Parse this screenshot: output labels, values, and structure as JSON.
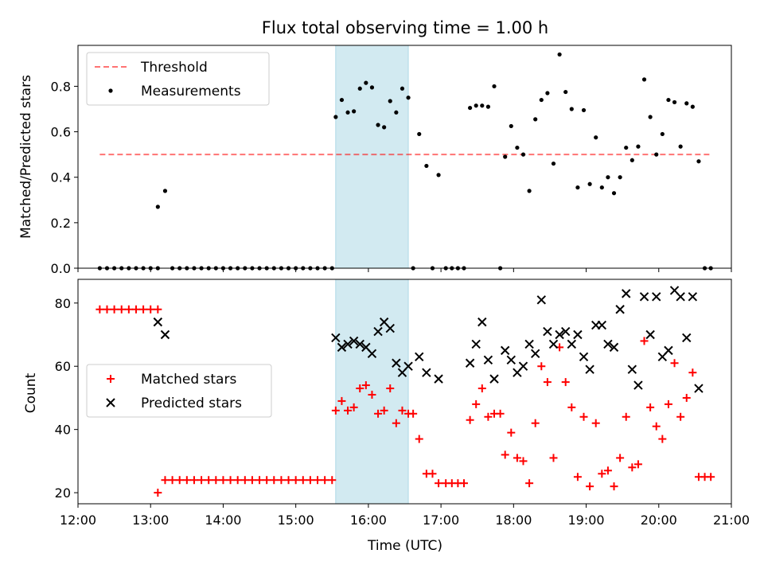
{
  "chart_data": [
    {
      "type": "scatter",
      "title": "Flux total observing time = 1.00 h",
      "xlabel": "",
      "ylabel": "Matched/Predicted stars",
      "xlim": [
        "12:00",
        "21:00"
      ],
      "ylim": [
        0.0,
        0.98
      ],
      "yticks": [
        "0.0",
        "0.2",
        "0.4",
        "0.6",
        "0.8"
      ],
      "highlight_span": {
        "from": "15:33",
        "to": "16:33",
        "color": "#add8e6"
      },
      "legend_position": "upper left",
      "threshold": {
        "name": "Threshold",
        "value": 0.5,
        "from": "12:18",
        "to": "20:42",
        "color": "#ff0000"
      },
      "series": [
        {
          "name": "Measurements",
          "marker": "dot",
          "color": "#000000",
          "points": [
            [
              "12:18",
              0
            ],
            [
              "12:24",
              0
            ],
            [
              "12:30",
              0
            ],
            [
              "12:36",
              0
            ],
            [
              "12:42",
              0
            ],
            [
              "12:48",
              0
            ],
            [
              "12:54",
              0
            ],
            [
              "13:00",
              0
            ],
            [
              "13:06",
              0
            ],
            [
              "13:06",
              0.27
            ],
            [
              "13:12",
              0.34
            ],
            [
              "13:18",
              0
            ],
            [
              "13:24",
              0
            ],
            [
              "13:30",
              0
            ],
            [
              "13:36",
              0
            ],
            [
              "13:42",
              0
            ],
            [
              "13:48",
              0
            ],
            [
              "13:54",
              0
            ],
            [
              "14:00",
              0
            ],
            [
              "14:06",
              0
            ],
            [
              "14:12",
              0
            ],
            [
              "14:18",
              0
            ],
            [
              "14:24",
              0
            ],
            [
              "14:30",
              0
            ],
            [
              "14:36",
              0
            ],
            [
              "14:42",
              0
            ],
            [
              "14:48",
              0
            ],
            [
              "14:54",
              0
            ],
            [
              "15:00",
              0
            ],
            [
              "15:06",
              0
            ],
            [
              "15:12",
              0
            ],
            [
              "15:18",
              0
            ],
            [
              "15:24",
              0
            ],
            [
              "15:30",
              0
            ],
            [
              "15:33",
              0.665
            ],
            [
              "15:38",
              0.74
            ],
            [
              "15:43",
              0.685
            ],
            [
              "15:48",
              0.69
            ],
            [
              "15:53",
              0.79
            ],
            [
              "15:58",
              0.815
            ],
            [
              "16:03",
              0.795
            ],
            [
              "16:08",
              0.63
            ],
            [
              "16:13",
              0.62
            ],
            [
              "16:18",
              0.735
            ],
            [
              "16:23",
              0.685
            ],
            [
              "16:28",
              0.79
            ],
            [
              "16:33",
              0.75
            ],
            [
              "16:37",
              0
            ],
            [
              "16:42",
              0.59
            ],
            [
              "16:48",
              0.45
            ],
            [
              "16:53",
              0
            ],
            [
              "16:58",
              0.41
            ],
            [
              "17:04",
              0
            ],
            [
              "17:09",
              0
            ],
            [
              "17:14",
              0
            ],
            [
              "17:19",
              0
            ],
            [
              "17:24",
              0.705
            ],
            [
              "17:29",
              0.715
            ],
            [
              "17:34",
              0.715
            ],
            [
              "17:39",
              0.71
            ],
            [
              "17:44",
              0.8
            ],
            [
              "17:49",
              0
            ],
            [
              "17:53",
              0.49
            ],
            [
              "17:58",
              0.625
            ],
            [
              "18:03",
              0.53
            ],
            [
              "18:08",
              0.5
            ],
            [
              "18:13",
              0.34
            ],
            [
              "18:18",
              0.655
            ],
            [
              "18:23",
              0.74
            ],
            [
              "18:28",
              0.77
            ],
            [
              "18:33",
              0.46
            ],
            [
              "18:38",
              0.94
            ],
            [
              "18:43",
              0.775
            ],
            [
              "18:48",
              0.7
            ],
            [
              "18:53",
              0.355
            ],
            [
              "18:58",
              0.695
            ],
            [
              "19:03",
              0.37
            ],
            [
              "19:08",
              0.575
            ],
            [
              "19:13",
              0.355
            ],
            [
              "19:18",
              0.4
            ],
            [
              "19:23",
              0.33
            ],
            [
              "19:28",
              0.4
            ],
            [
              "19:33",
              0.53
            ],
            [
              "19:38",
              0.475
            ],
            [
              "19:43",
              0.535
            ],
            [
              "19:48",
              0.83
            ],
            [
              "19:53",
              0.665
            ],
            [
              "19:58",
              0.5
            ],
            [
              "20:03",
              0.59
            ],
            [
              "20:08",
              0.74
            ],
            [
              "20:13",
              0.73
            ],
            [
              "20:18",
              0.535
            ],
            [
              "20:23",
              0.725
            ],
            [
              "20:28",
              0.71
            ],
            [
              "20:33",
              0.47
            ],
            [
              "20:38",
              0
            ],
            [
              "20:43",
              0
            ]
          ]
        }
      ]
    },
    {
      "type": "scatter",
      "title": "",
      "xlabel": "Time (UTC)",
      "ylabel": "Count",
      "xlim": [
        "12:00",
        "21:00"
      ],
      "ylim": [
        16.5,
        87.5
      ],
      "xticks": [
        "12:00",
        "13:00",
        "14:00",
        "15:00",
        "16:00",
        "17:00",
        "18:00",
        "19:00",
        "20:00",
        "21:00"
      ],
      "yticks": [
        "20",
        "40",
        "60",
        "80"
      ],
      "highlight_span": {
        "from": "15:33",
        "to": "16:33",
        "color": "#add8e6"
      },
      "legend_position": "center left",
      "series": [
        {
          "name": "Matched stars",
          "marker": "plus",
          "color": "#ff0000",
          "points": [
            [
              "12:18",
              78
            ],
            [
              "12:24",
              78
            ],
            [
              "12:30",
              78
            ],
            [
              "12:36",
              78
            ],
            [
              "12:42",
              78
            ],
            [
              "12:48",
              78
            ],
            [
              "12:54",
              78
            ],
            [
              "13:00",
              78
            ],
            [
              "13:06",
              78
            ],
            [
              "13:06",
              20
            ],
            [
              "13:12",
              24
            ],
            [
              "13:18",
              24
            ],
            [
              "13:24",
              24
            ],
            [
              "13:30",
              24
            ],
            [
              "13:36",
              24
            ],
            [
              "13:42",
              24
            ],
            [
              "13:48",
              24
            ],
            [
              "13:54",
              24
            ],
            [
              "14:00",
              24
            ],
            [
              "14:06",
              24
            ],
            [
              "14:12",
              24
            ],
            [
              "14:18",
              24
            ],
            [
              "14:24",
              24
            ],
            [
              "14:30",
              24
            ],
            [
              "14:36",
              24
            ],
            [
              "14:42",
              24
            ],
            [
              "14:48",
              24
            ],
            [
              "14:54",
              24
            ],
            [
              "15:00",
              24
            ],
            [
              "15:06",
              24
            ],
            [
              "15:12",
              24
            ],
            [
              "15:18",
              24
            ],
            [
              "15:24",
              24
            ],
            [
              "15:30",
              24
            ],
            [
              "15:33",
              46
            ],
            [
              "15:38",
              49
            ],
            [
              "15:43",
              46
            ],
            [
              "15:48",
              47
            ],
            [
              "15:53",
              53
            ],
            [
              "15:58",
              54
            ],
            [
              "16:03",
              51
            ],
            [
              "16:08",
              45
            ],
            [
              "16:13",
              46
            ],
            [
              "16:18",
              53
            ],
            [
              "16:23",
              42
            ],
            [
              "16:28",
              46
            ],
            [
              "16:33",
              45
            ],
            [
              "16:37",
              45
            ],
            [
              "16:42",
              37
            ],
            [
              "16:48",
              26
            ],
            [
              "16:53",
              26
            ],
            [
              "16:58",
              23
            ],
            [
              "17:04",
              23
            ],
            [
              "17:09",
              23
            ],
            [
              "17:14",
              23
            ],
            [
              "17:19",
              23
            ],
            [
              "17:24",
              43
            ],
            [
              "17:29",
              48
            ],
            [
              "17:34",
              53
            ],
            [
              "17:39",
              44
            ],
            [
              "17:44",
              45
            ],
            [
              "17:49",
              45
            ],
            [
              "17:53",
              32
            ],
            [
              "17:58",
              39
            ],
            [
              "18:03",
              31
            ],
            [
              "18:08",
              30
            ],
            [
              "18:13",
              23
            ],
            [
              "18:18",
              42
            ],
            [
              "18:23",
              60
            ],
            [
              "18:28",
              55
            ],
            [
              "18:33",
              31
            ],
            [
              "18:38",
              66
            ],
            [
              "18:43",
              55
            ],
            [
              "18:48",
              47
            ],
            [
              "18:53",
              25
            ],
            [
              "18:58",
              44
            ],
            [
              "19:03",
              22
            ],
            [
              "19:08",
              42
            ],
            [
              "19:13",
              26
            ],
            [
              "19:18",
              27
            ],
            [
              "19:23",
              22
            ],
            [
              "19:28",
              31
            ],
            [
              "19:33",
              44
            ],
            [
              "19:38",
              28
            ],
            [
              "19:43",
              29
            ],
            [
              "19:48",
              68
            ],
            [
              "19:53",
              47
            ],
            [
              "19:58",
              41
            ],
            [
              "20:03",
              37
            ],
            [
              "20:08",
              48
            ],
            [
              "20:13",
              61
            ],
            [
              "20:18",
              44
            ],
            [
              "20:23",
              50
            ],
            [
              "20:28",
              58
            ],
            [
              "20:33",
              25
            ],
            [
              "20:38",
              25
            ],
            [
              "20:43",
              25
            ]
          ]
        },
        {
          "name": "Predicted stars",
          "marker": "x",
          "color": "#000000",
          "points": [
            [
              "13:06",
              74
            ],
            [
              "13:12",
              70
            ],
            [
              "15:33",
              69
            ],
            [
              "15:38",
              66
            ],
            [
              "15:43",
              67
            ],
            [
              "15:48",
              68
            ],
            [
              "15:53",
              67
            ],
            [
              "15:58",
              66
            ],
            [
              "16:03",
              64
            ],
            [
              "16:08",
              71
            ],
            [
              "16:13",
              74
            ],
            [
              "16:18",
              72
            ],
            [
              "16:23",
              61
            ],
            [
              "16:28",
              58
            ],
            [
              "16:33",
              60
            ],
            [
              "16:42",
              63
            ],
            [
              "16:48",
              58
            ],
            [
              "16:58",
              56
            ],
            [
              "17:24",
              61
            ],
            [
              "17:29",
              67
            ],
            [
              "17:34",
              74
            ],
            [
              "17:39",
              62
            ],
            [
              "17:44",
              56
            ],
            [
              "17:53",
              65
            ],
            [
              "17:58",
              62
            ],
            [
              "18:03",
              58
            ],
            [
              "18:08",
              60
            ],
            [
              "18:13",
              67
            ],
            [
              "18:18",
              64
            ],
            [
              "18:23",
              81
            ],
            [
              "18:28",
              71
            ],
            [
              "18:33",
              67
            ],
            [
              "18:38",
              70
            ],
            [
              "18:43",
              71
            ],
            [
              "18:48",
              67
            ],
            [
              "18:53",
              70
            ],
            [
              "18:58",
              63
            ],
            [
              "19:03",
              59
            ],
            [
              "19:08",
              73
            ],
            [
              "19:13",
              73
            ],
            [
              "19:18",
              67
            ],
            [
              "19:23",
              66
            ],
            [
              "19:28",
              78
            ],
            [
              "19:33",
              83
            ],
            [
              "19:38",
              59
            ],
            [
              "19:43",
              54
            ],
            [
              "19:48",
              82
            ],
            [
              "19:53",
              70
            ],
            [
              "19:58",
              82
            ],
            [
              "20:03",
              63
            ],
            [
              "20:08",
              65
            ],
            [
              "20:13",
              84
            ],
            [
              "20:18",
              82
            ],
            [
              "20:23",
              69
            ],
            [
              "20:28",
              82
            ],
            [
              "20:33",
              53
            ]
          ]
        }
      ]
    }
  ]
}
